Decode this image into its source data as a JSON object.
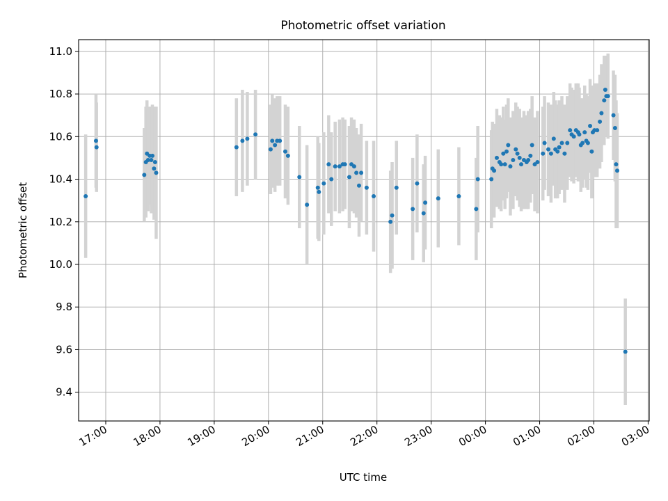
{
  "chart_data": {
    "type": "scatter",
    "title": "Photometric offset variation",
    "xlabel": "UTC time",
    "ylabel": "Photometric offset",
    "x_unit": "hours",
    "xlim": [
      16.5,
      27.02
    ],
    "ylim": [
      9.265,
      11.055
    ],
    "x_ticks": [
      {
        "x": 17,
        "label": "17:00"
      },
      {
        "x": 18,
        "label": "18:00"
      },
      {
        "x": 19,
        "label": "19:00"
      },
      {
        "x": 20,
        "label": "20:00"
      },
      {
        "x": 21,
        "label": "21:00"
      },
      {
        "x": 22,
        "label": "22:00"
      },
      {
        "x": 23,
        "label": "23:00"
      },
      {
        "x": 24,
        "label": "00:00"
      },
      {
        "x": 25,
        "label": "01:00"
      },
      {
        "x": 26,
        "label": "02:00"
      },
      {
        "x": 27,
        "label": "03:00"
      }
    ],
    "y_ticks": [
      {
        "y": 9.4,
        "label": "9.4"
      },
      {
        "y": 9.6,
        "label": "9.6"
      },
      {
        "y": 9.8,
        "label": "9.8"
      },
      {
        "y": 10.0,
        "label": "10.0"
      },
      {
        "y": 10.2,
        "label": "10.2"
      },
      {
        "y": 10.4,
        "label": "10.4"
      },
      {
        "y": 10.6,
        "label": "10.6"
      },
      {
        "y": 10.8,
        "label": "10.8"
      },
      {
        "y": 11.0,
        "label": "11.0"
      }
    ],
    "grid": true,
    "marker_color": "#1f77b4",
    "errorbar_color": "#d3d3d3",
    "points": [
      [
        16.63,
        10.32,
        0.29
      ],
      [
        16.82,
        10.58,
        0.22
      ],
      [
        16.83,
        10.55,
        0.21
      ],
      [
        17.71,
        10.42,
        0.22
      ],
      [
        17.74,
        10.48,
        0.26
      ],
      [
        17.76,
        10.52,
        0.25
      ],
      [
        17.78,
        10.49,
        0.24
      ],
      [
        17.81,
        10.51,
        0.23
      ],
      [
        17.84,
        10.49,
        0.25
      ],
      [
        17.86,
        10.51,
        0.24
      ],
      [
        17.89,
        10.45,
        0.24
      ],
      [
        17.91,
        10.48,
        0.26
      ],
      [
        17.93,
        10.43,
        0.31
      ],
      [
        19.41,
        10.55,
        0.23
      ],
      [
        19.52,
        10.58,
        0.24
      ],
      [
        19.61,
        10.59,
        0.22
      ],
      [
        19.76,
        10.61,
        0.21
      ],
      [
        20.04,
        10.54,
        0.21
      ],
      [
        20.07,
        10.58,
        0.22
      ],
      [
        20.12,
        10.56,
        0.22
      ],
      [
        20.16,
        10.58,
        0.21
      ],
      [
        20.21,
        10.58,
        0.21
      ],
      [
        20.31,
        10.53,
        0.22
      ],
      [
        20.36,
        10.51,
        0.23
      ],
      [
        20.57,
        10.41,
        0.24
      ],
      [
        20.71,
        10.28,
        0.28
      ],
      [
        20.91,
        10.36,
        0.24
      ],
      [
        20.93,
        10.34,
        0.23
      ],
      [
        21.02,
        10.38,
        0.24
      ],
      [
        21.11,
        10.47,
        0.23
      ],
      [
        21.16,
        10.4,
        0.22
      ],
      [
        21.23,
        10.46,
        0.21
      ],
      [
        21.31,
        10.46,
        0.22
      ],
      [
        21.37,
        10.47,
        0.22
      ],
      [
        21.41,
        10.47,
        0.21
      ],
      [
        21.49,
        10.41,
        0.24
      ],
      [
        21.53,
        10.47,
        0.22
      ],
      [
        21.58,
        10.46,
        0.22
      ],
      [
        21.62,
        10.43,
        0.21
      ],
      [
        21.67,
        10.37,
        0.24
      ],
      [
        21.71,
        10.43,
        0.23
      ],
      [
        21.81,
        10.36,
        0.22
      ],
      [
        21.94,
        10.32,
        0.26
      ],
      [
        22.25,
        10.2,
        0.24
      ],
      [
        22.28,
        10.23,
        0.25
      ],
      [
        22.36,
        10.36,
        0.22
      ],
      [
        22.66,
        10.26,
        0.24
      ],
      [
        22.74,
        10.38,
        0.23
      ],
      [
        22.86,
        10.24,
        0.23
      ],
      [
        22.89,
        10.29,
        0.22
      ],
      [
        23.13,
        10.31,
        0.23
      ],
      [
        23.51,
        10.32,
        0.23
      ],
      [
        23.83,
        10.26,
        0.24
      ],
      [
        23.86,
        10.4,
        0.25
      ],
      [
        24.11,
        10.4,
        0.23
      ],
      [
        24.13,
        10.45,
        0.22
      ],
      [
        24.16,
        10.44,
        0.22
      ],
      [
        24.21,
        10.5,
        0.23
      ],
      [
        24.26,
        10.48,
        0.22
      ],
      [
        24.29,
        10.47,
        0.22
      ],
      [
        24.33,
        10.52,
        0.22
      ],
      [
        24.36,
        10.47,
        0.21
      ],
      [
        24.39,
        10.53,
        0.22
      ],
      [
        24.42,
        10.56,
        0.22
      ],
      [
        24.46,
        10.46,
        0.23
      ],
      [
        24.51,
        10.49,
        0.23
      ],
      [
        24.56,
        10.54,
        0.22
      ],
      [
        24.59,
        10.52,
        0.22
      ],
      [
        24.63,
        10.5,
        0.23
      ],
      [
        24.66,
        10.47,
        0.22
      ],
      [
        24.71,
        10.49,
        0.23
      ],
      [
        24.76,
        10.48,
        0.22
      ],
      [
        24.79,
        10.49,
        0.23
      ],
      [
        24.83,
        10.51,
        0.22
      ],
      [
        24.86,
        10.56,
        0.23
      ],
      [
        24.91,
        10.47,
        0.22
      ],
      [
        24.96,
        10.48,
        0.24
      ],
      [
        25.06,
        10.52,
        0.22
      ],
      [
        25.09,
        10.57,
        0.22
      ],
      [
        25.16,
        10.54,
        0.22
      ],
      [
        25.21,
        10.52,
        0.23
      ],
      [
        25.26,
        10.59,
        0.22
      ],
      [
        25.29,
        10.54,
        0.23
      ],
      [
        25.33,
        10.53,
        0.22
      ],
      [
        25.36,
        10.55,
        0.22
      ],
      [
        25.41,
        10.57,
        0.22
      ],
      [
        25.46,
        10.52,
        0.23
      ],
      [
        25.51,
        10.57,
        0.22
      ],
      [
        25.56,
        10.63,
        0.22
      ],
      [
        25.59,
        10.61,
        0.22
      ],
      [
        25.63,
        10.6,
        0.22
      ],
      [
        25.67,
        10.63,
        0.22
      ],
      [
        25.71,
        10.62,
        0.23
      ],
      [
        25.73,
        10.61,
        0.22
      ],
      [
        25.76,
        10.56,
        0.22
      ],
      [
        25.79,
        10.57,
        0.21
      ],
      [
        25.83,
        10.62,
        0.22
      ],
      [
        25.86,
        10.58,
        0.22
      ],
      [
        25.89,
        10.57,
        0.22
      ],
      [
        25.93,
        10.65,
        0.22
      ],
      [
        25.96,
        10.53,
        0.22
      ],
      [
        25.98,
        10.62,
        0.22
      ],
      [
        26.01,
        10.63,
        0.22
      ],
      [
        26.06,
        10.63,
        0.22
      ],
      [
        26.11,
        10.67,
        0.22
      ],
      [
        26.14,
        10.71,
        0.23
      ],
      [
        26.19,
        10.77,
        0.21
      ],
      [
        26.21,
        10.82,
        0.16
      ],
      [
        26.23,
        10.79,
        0.19
      ],
      [
        26.26,
        10.79,
        0.2
      ],
      [
        26.36,
        10.7,
        0.21
      ],
      [
        26.39,
        10.64,
        0.25
      ],
      [
        26.41,
        10.47,
        0.3
      ],
      [
        26.43,
        10.44,
        0.27
      ],
      [
        26.58,
        9.59,
        0.25
      ]
    ]
  }
}
